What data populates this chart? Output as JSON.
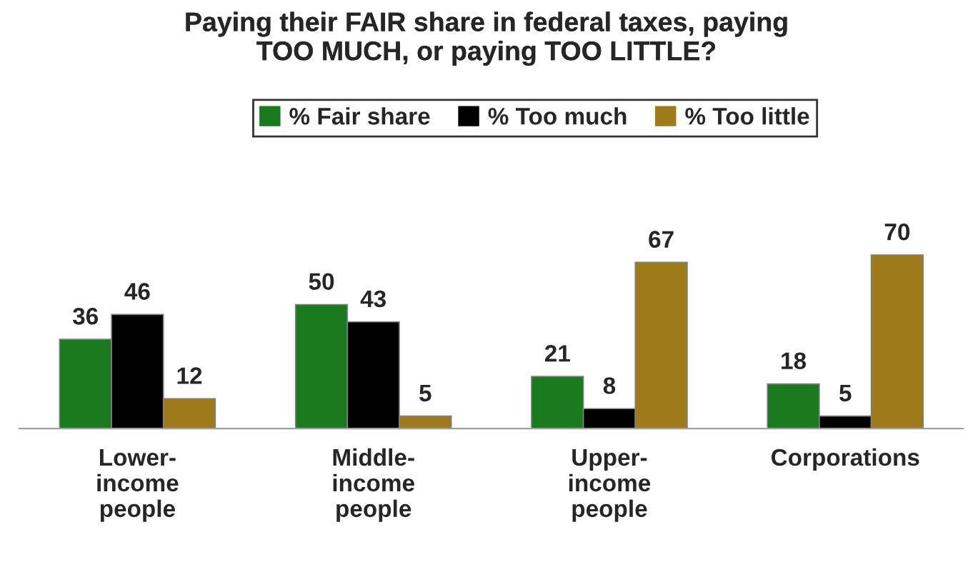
{
  "chart_data": {
    "type": "bar",
    "title": "Paying their FAIR share in federal taxes, paying\nTOO MUCH, or paying TOO LITTLE?",
    "categories": [
      "Lower-\nincome\npeople",
      "Middle-\nincome\npeople",
      "Upper-\nincome\npeople",
      "Corporations"
    ],
    "series": [
      {
        "name": "% Fair share",
        "color": "#1a7a1e",
        "values": [
          36,
          50,
          21,
          18
        ]
      },
      {
        "name": "% Too much",
        "color": "#000000",
        "values": [
          46,
          43,
          8,
          5
        ]
      },
      {
        "name": "% Too little",
        "color": "#9e7a1a",
        "values": [
          12,
          5,
          67,
          70
        ]
      }
    ],
    "data_labels": true,
    "legend": "top",
    "tick_labels": "x",
    "grid": false
  }
}
